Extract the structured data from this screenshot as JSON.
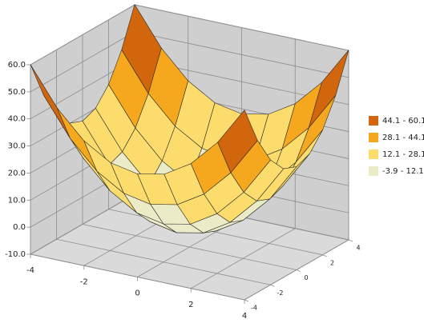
{
  "chart_data": {
    "type": "surface",
    "x": [
      -4,
      -3,
      -2,
      -1,
      0,
      1,
      2,
      3,
      4
    ],
    "y": [
      -4,
      -3,
      -2,
      -1,
      0,
      1,
      2,
      3,
      4
    ],
    "z": [
      [
        60.1,
        46.1,
        36.1,
        30.1,
        28.1,
        30.1,
        36.1,
        46.1,
        60.1
      ],
      [
        46.1,
        32.1,
        22.1,
        16.1,
        14.1,
        16.1,
        22.1,
        32.1,
        46.1
      ],
      [
        36.1,
        22.1,
        12.1,
        6.1,
        4.1,
        6.1,
        12.1,
        22.1,
        36.1
      ],
      [
        30.1,
        16.1,
        6.1,
        0.1,
        -1.9,
        0.1,
        6.1,
        16.1,
        30.1
      ],
      [
        28.1,
        14.1,
        4.1,
        -1.9,
        -3.9,
        -1.9,
        4.1,
        14.1,
        28.1
      ],
      [
        30.1,
        16.1,
        6.1,
        0.1,
        -1.9,
        0.1,
        6.1,
        16.1,
        30.1
      ],
      [
        36.1,
        22.1,
        12.1,
        6.1,
        4.1,
        6.1,
        12.1,
        22.1,
        36.1
      ],
      [
        46.1,
        32.1,
        22.1,
        16.1,
        14.1,
        16.1,
        22.1,
        32.1,
        46.1
      ],
      [
        60.1,
        46.1,
        36.1,
        30.1,
        28.1,
        30.1,
        36.1,
        46.1,
        60.1
      ]
    ],
    "xlim": [
      -4,
      4
    ],
    "ylim": [
      -4,
      4
    ],
    "zlim": [
      -10,
      60
    ],
    "xticks": [
      -4,
      -2,
      0,
      2,
      4
    ],
    "yticks": [
      -4,
      -2,
      0,
      2,
      4
    ],
    "zticks": [
      {
        "value": -10,
        "label": "-10.0"
      },
      {
        "value": 0,
        "label": "0.0"
      },
      {
        "value": 10,
        "label": "10.0"
      },
      {
        "value": 20,
        "label": "20.0"
      },
      {
        "value": 30,
        "label": "30.0"
      },
      {
        "value": 40,
        "label": "40.0"
      },
      {
        "value": 50,
        "label": "50.0"
      },
      {
        "value": 60,
        "label": "60.0"
      }
    ],
    "bands": [
      {
        "label": "44.1 - 60.1",
        "min": 44.1,
        "max": 60.1,
        "color": "#d2660c"
      },
      {
        "label": "28.1 - 44.1",
        "min": 28.1,
        "max": 44.1,
        "color": "#f5a71e"
      },
      {
        "label": "12.1 - 28.1",
        "min": 12.1,
        "max": 28.1,
        "color": "#fbdc6c"
      },
      {
        "label": "-3.9 - 12.1",
        "min": -3.9,
        "max": 12.1,
        "color": "#ecebc8"
      }
    ]
  }
}
